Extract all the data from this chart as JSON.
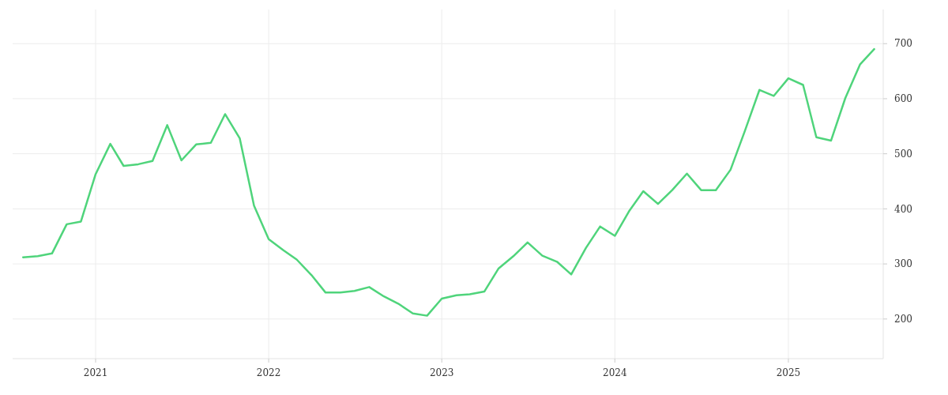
{
  "chart_data": {
    "type": "line",
    "x": [
      "2020-08",
      "2020-09",
      "2020-10",
      "2020-11",
      "2020-12",
      "2021-01",
      "2021-02",
      "2021-03",
      "2021-04",
      "2021-05",
      "2021-06",
      "2021-07",
      "2021-08",
      "2021-09",
      "2021-10",
      "2021-11",
      "2021-12",
      "2022-01",
      "2022-02",
      "2022-03",
      "2022-04",
      "2022-05",
      "2022-06",
      "2022-07",
      "2022-08",
      "2022-09",
      "2022-10",
      "2022-11",
      "2022-12",
      "2023-01",
      "2023-02",
      "2023-03",
      "2023-04",
      "2023-05",
      "2023-06",
      "2023-07",
      "2023-08",
      "2023-09",
      "2023-10",
      "2023-11",
      "2023-12",
      "2024-01",
      "2024-02",
      "2024-03",
      "2024-04",
      "2024-05",
      "2024-06",
      "2024-07",
      "2024-08",
      "2024-09",
      "2024-10",
      "2024-11",
      "2024-12",
      "2025-01",
      "2025-02",
      "2025-03",
      "2025-04",
      "2025-05",
      "2025-06",
      "2025-07"
    ],
    "series": [
      {
        "color": "#4fd47b",
        "values": [
          312,
          314,
          319,
          372,
          377,
          463,
          518,
          478,
          481,
          487,
          552,
          488,
          517,
          520,
          572,
          528,
          406,
          345,
          325,
          308,
          280,
          248,
          248,
          251,
          258,
          241,
          228,
          210,
          206,
          237,
          243,
          245,
          250,
          292,
          314,
          339,
          315,
          304,
          281,
          329,
          368,
          351,
          397,
          432,
          409,
          434,
          464,
          434,
          434,
          471,
          541,
          616,
          605,
          637,
          625,
          530,
          524,
          601,
          662,
          690
        ]
      }
    ],
    "xlim": [
      "2020-07-10",
      "2025-07-20"
    ],
    "xticks": [
      {
        "value": "2021-01-01",
        "label": "2021"
      },
      {
        "value": "2022-01-01",
        "label": "2022"
      },
      {
        "value": "2023-01-01",
        "label": "2023"
      },
      {
        "value": "2024-01-01",
        "label": "2024"
      },
      {
        "value": "2025-01-01",
        "label": "2025"
      }
    ],
    "ylim": [
      128,
      762
    ],
    "yticks": [
      200,
      300,
      400,
      500,
      600,
      700
    ],
    "grid": true,
    "line_style": "solid",
    "marker": "none"
  }
}
